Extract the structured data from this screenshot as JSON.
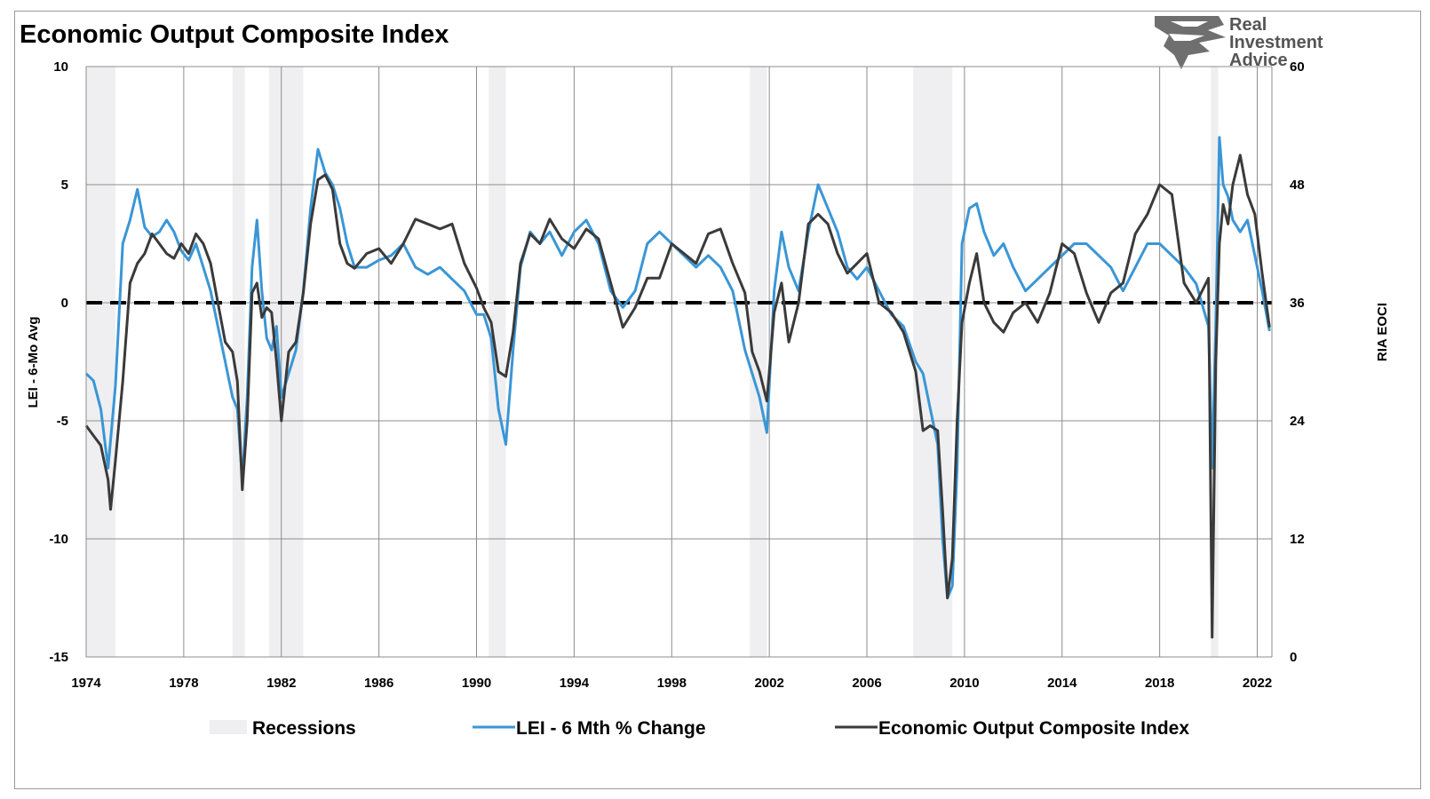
{
  "chart_data": {
    "type": "line",
    "title": "Economic Output Composite Index",
    "ylabel_left": "LEI - 6-Mo Avg",
    "ylabel_right": "RIA EOCI",
    "ylim_left": [
      -15,
      10
    ],
    "ylim_right": [
      0,
      60
    ],
    "yticks_left": [
      "10",
      "5",
      "0",
      "-5",
      "-10",
      "-15"
    ],
    "yticks_left_values": [
      10,
      5,
      0,
      -5,
      -10,
      -15
    ],
    "yticks_right": [
      "60",
      "48",
      "36",
      "24",
      "12",
      "0"
    ],
    "yticks_right_values": [
      60,
      48,
      36,
      24,
      12,
      0
    ],
    "xlim": [
      1974,
      2022.6
    ],
    "xticks": [
      "1974",
      "1978",
      "1982",
      "1986",
      "1990",
      "1994",
      "1998",
      "2002",
      "2006",
      "2010",
      "2014",
      "2018",
      "2022"
    ],
    "xticks_values": [
      1974,
      1978,
      1982,
      1986,
      1990,
      1994,
      1998,
      2002,
      2006,
      2010,
      2014,
      2018,
      2022
    ],
    "reference_line_left": 0,
    "recessions": [
      [
        1974.0,
        1975.2
      ],
      [
        1980.0,
        1980.5
      ],
      [
        1981.5,
        1982.9
      ],
      [
        1990.5,
        1991.2
      ],
      [
        2001.2,
        2001.9
      ],
      [
        2007.9,
        2009.5
      ],
      [
        2020.1,
        2020.4
      ]
    ],
    "series": [
      {
        "name": "LEI - 6 Mth % Change",
        "axis": "left",
        "color": "#3a96d6",
        "x": [
          1974.0,
          1974.3,
          1974.6,
          1974.9,
          1975.2,
          1975.5,
          1975.8,
          1976.1,
          1976.4,
          1976.7,
          1977.0,
          1977.3,
          1977.6,
          1977.9,
          1978.2,
          1978.5,
          1978.8,
          1979.1,
          1979.4,
          1979.7,
          1980.0,
          1980.2,
          1980.4,
          1980.6,
          1980.8,
          1981.0,
          1981.2,
          1981.4,
          1981.6,
          1981.8,
          1982.0,
          1982.3,
          1982.6,
          1982.9,
          1983.2,
          1983.5,
          1983.8,
          1984.1,
          1984.4,
          1984.7,
          1985.0,
          1985.5,
          1986.0,
          1986.5,
          1987.0,
          1987.5,
          1988.0,
          1988.5,
          1989.0,
          1989.5,
          1990.0,
          1990.3,
          1990.6,
          1990.9,
          1991.2,
          1991.5,
          1991.8,
          1992.2,
          1992.6,
          1993.0,
          1993.5,
          1994.0,
          1994.5,
          1995.0,
          1995.5,
          1996.0,
          1996.5,
          1997.0,
          1997.5,
          1998.0,
          1998.5,
          1999.0,
          1999.5,
          2000.0,
          2000.5,
          2001.0,
          2001.3,
          2001.6,
          2001.9,
          2002.2,
          2002.5,
          2002.8,
          2003.2,
          2003.6,
          2004.0,
          2004.4,
          2004.8,
          2005.2,
          2005.6,
          2006.0,
          2006.5,
          2007.0,
          2007.5,
          2008.0,
          2008.3,
          2008.6,
          2008.9,
          2009.1,
          2009.3,
          2009.5,
          2009.7,
          2009.9,
          2010.2,
          2010.5,
          2010.8,
          2011.2,
          2011.6,
          2012.0,
          2012.5,
          2013.0,
          2013.5,
          2014.0,
          2014.5,
          2015.0,
          2015.5,
          2016.0,
          2016.5,
          2017.0,
          2017.5,
          2018.0,
          2018.5,
          2019.0,
          2019.5,
          2020.0,
          2020.15,
          2020.3,
          2020.45,
          2020.6,
          2020.8,
          2021.0,
          2021.3,
          2021.6,
          2021.9,
          2022.2,
          2022.5
        ],
        "values": [
          -3.0,
          -3.3,
          -4.5,
          -7.0,
          -3.5,
          2.5,
          3.5,
          4.8,
          3.2,
          2.8,
          3.0,
          3.5,
          3.0,
          2.2,
          1.8,
          2.5,
          1.5,
          0.5,
          -1.0,
          -2.5,
          -4.0,
          -4.5,
          -7.5,
          -4.0,
          1.5,
          3.5,
          0.5,
          -1.5,
          -2.0,
          -1.0,
          -4.0,
          -3.0,
          -2.0,
          0.5,
          4.0,
          6.5,
          5.5,
          5.0,
          4.0,
          2.5,
          1.5,
          1.5,
          1.8,
          2.0,
          2.5,
          1.5,
          1.2,
          1.5,
          1.0,
          0.5,
          -0.5,
          -0.5,
          -1.5,
          -4.5,
          -6.0,
          -2.0,
          1.5,
          3.0,
          2.5,
          3.0,
          2.0,
          3.0,
          3.5,
          2.5,
          0.5,
          -0.2,
          0.5,
          2.5,
          3.0,
          2.5,
          2.0,
          1.5,
          2.0,
          1.5,
          0.5,
          -2.0,
          -3.0,
          -4.0,
          -5.5,
          0.5,
          3.0,
          1.5,
          0.5,
          3.0,
          5.0,
          4.0,
          3.0,
          1.5,
          1.0,
          1.5,
          0.5,
          -0.5,
          -1.0,
          -2.5,
          -3.0,
          -4.5,
          -6.0,
          -10.0,
          -12.5,
          -12.0,
          -7.0,
          2.5,
          4.0,
          4.2,
          3.0,
          2.0,
          2.5,
          1.5,
          0.5,
          1.0,
          1.5,
          2.0,
          2.5,
          2.5,
          2.0,
          1.5,
          0.5,
          1.5,
          2.5,
          2.5,
          2.0,
          1.5,
          0.8,
          -1.0,
          -7.0,
          -1.0,
          7.0,
          5.0,
          4.5,
          3.5,
          3.0,
          3.5,
          2.0,
          0.5,
          -1.2
        ]
      },
      {
        "name": "Economic Output Composite Index",
        "axis": "right",
        "color": "#3a3a3a",
        "x": [
          1974.0,
          1974.3,
          1974.6,
          1974.9,
          1975.0,
          1975.2,
          1975.5,
          1975.8,
          1976.1,
          1976.4,
          1976.7,
          1977.0,
          1977.3,
          1977.6,
          1977.9,
          1978.2,
          1978.5,
          1978.8,
          1979.1,
          1979.4,
          1979.7,
          1980.0,
          1980.2,
          1980.4,
          1980.6,
          1980.8,
          1981.0,
          1981.2,
          1981.4,
          1981.6,
          1981.8,
          1982.0,
          1982.3,
          1982.6,
          1982.9,
          1983.2,
          1983.5,
          1983.8,
          1984.1,
          1984.4,
          1984.7,
          1985.0,
          1985.5,
          1986.0,
          1986.5,
          1987.0,
          1987.5,
          1988.0,
          1988.5,
          1989.0,
          1989.5,
          1990.0,
          1990.3,
          1990.6,
          1990.9,
          1991.2,
          1991.5,
          1991.8,
          1992.2,
          1992.6,
          1993.0,
          1993.5,
          1994.0,
          1994.5,
          1995.0,
          1995.5,
          1996.0,
          1996.5,
          1997.0,
          1997.5,
          1998.0,
          1998.5,
          1999.0,
          1999.5,
          2000.0,
          2000.5,
          2001.0,
          2001.3,
          2001.6,
          2001.9,
          2002.2,
          2002.5,
          2002.8,
          2003.2,
          2003.6,
          2004.0,
          2004.4,
          2004.8,
          2005.2,
          2005.6,
          2006.0,
          2006.5,
          2007.0,
          2007.5,
          2008.0,
          2008.3,
          2008.6,
          2008.9,
          2009.1,
          2009.3,
          2009.5,
          2009.7,
          2009.9,
          2010.2,
          2010.5,
          2010.8,
          2011.2,
          2011.6,
          2012.0,
          2012.5,
          2013.0,
          2013.5,
          2014.0,
          2014.5,
          2015.0,
          2015.5,
          2016.0,
          2016.5,
          2017.0,
          2017.5,
          2018.0,
          2018.5,
          2019.0,
          2019.5,
          2020.0,
          2020.15,
          2020.3,
          2020.45,
          2020.6,
          2020.8,
          2021.0,
          2021.3,
          2021.6,
          2021.9,
          2022.2,
          2022.5
        ],
        "values": [
          23.5,
          22.5,
          21.5,
          18.0,
          15.0,
          20.0,
          28.0,
          38.0,
          40.0,
          41.0,
          43.0,
          42.0,
          41.0,
          40.5,
          42.0,
          41.0,
          43.0,
          42.0,
          40.0,
          36.0,
          32.0,
          31.0,
          28.0,
          17.0,
          24.0,
          37.0,
          38.0,
          34.5,
          35.5,
          35.0,
          30.0,
          24.0,
          31.0,
          32.0,
          37.0,
          44.0,
          48.5,
          49.0,
          47.5,
          42.0,
          40.0,
          39.5,
          41.0,
          41.5,
          40.0,
          42.0,
          44.5,
          44.0,
          43.5,
          44.0,
          40.0,
          37.5,
          35.5,
          34.0,
          29.0,
          28.5,
          33.0,
          40.0,
          43.0,
          42.0,
          44.5,
          42.5,
          41.5,
          43.5,
          42.5,
          38.0,
          33.5,
          35.5,
          38.5,
          38.5,
          42.0,
          41.0,
          40.0,
          43.0,
          43.5,
          40.0,
          37.0,
          31.0,
          29.0,
          26.0,
          35.0,
          38.0,
          32.0,
          36.0,
          44.0,
          45.0,
          44.0,
          41.0,
          39.0,
          40.0,
          41.0,
          36.0,
          35.0,
          33.0,
          29.0,
          23.0,
          23.5,
          23.0,
          15.0,
          6.0,
          10.0,
          24.0,
          34.0,
          38.0,
          41.0,
          36.0,
          34.0,
          33.0,
          35.0,
          36.0,
          34.0,
          37.0,
          42.0,
          41.0,
          37.0,
          34.0,
          37.0,
          38.0,
          43.0,
          45.0,
          48.0,
          47.0,
          38.0,
          36.0,
          38.5,
          2.0,
          30.0,
          42.0,
          46.0,
          44.0,
          48.0,
          51.0,
          47.0,
          45.0,
          39.0,
          33.5
        ]
      }
    ]
  },
  "legend": {
    "items": [
      {
        "label": "Recessions",
        "swatch": "#efeff1"
      },
      {
        "label": "LEI - 6 Mth % Change",
        "swatch": "#3a96d6"
      },
      {
        "label": "Economic Output Composite Index",
        "swatch": "#3a3a3a"
      }
    ]
  },
  "logo": {
    "icon": "eagle-head-icon",
    "line1": "Real",
    "line2": "Investment",
    "line3": "Advice"
  }
}
